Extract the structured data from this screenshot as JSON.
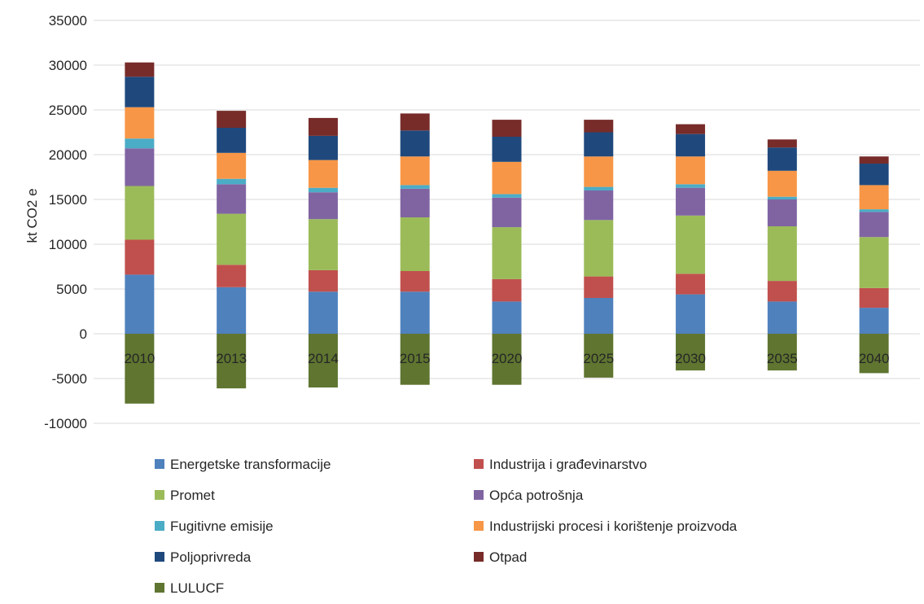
{
  "chart_data": {
    "type": "bar",
    "stacked": true,
    "title": "",
    "xlabel": "",
    "ylabel": "kt CO2 e",
    "ylim": [
      -10000,
      35000
    ],
    "yticks": [
      -10000,
      -5000,
      0,
      5000,
      10000,
      15000,
      20000,
      25000,
      30000,
      35000
    ],
    "grid": true,
    "legend_position": "bottom",
    "categories": [
      "2010",
      "2013",
      "2014",
      "2015",
      "2020",
      "2025",
      "2030",
      "2035",
      "2040"
    ],
    "series": [
      {
        "name": "Energetske transformacije",
        "color": "#4f81bd",
        "values": [
          6600,
          5200,
          4700,
          4700,
          3600,
          4000,
          4400,
          3600,
          2900
        ]
      },
      {
        "name": "Industrija i građevinarstvo",
        "color": "#c0504d",
        "values": [
          3900,
          2500,
          2400,
          2300,
          2500,
          2400,
          2300,
          2300,
          2200
        ]
      },
      {
        "name": "Promet",
        "color": "#9bbb59",
        "values": [
          6000,
          5700,
          5700,
          6000,
          5800,
          6300,
          6500,
          6100,
          5700
        ]
      },
      {
        "name": "Opća potrošnja",
        "color": "#8064a2",
        "values": [
          4200,
          3300,
          3000,
          3200,
          3300,
          3300,
          3100,
          3000,
          2800
        ]
      },
      {
        "name": "Fugitivne emisije",
        "color": "#4bacc6",
        "values": [
          1100,
          600,
          500,
          400,
          400,
          400,
          400,
          300,
          300
        ]
      },
      {
        "name": "Industrijski procesi i korištenje proizvoda",
        "color": "#f79646",
        "values": [
          3500,
          2900,
          3100,
          3200,
          3600,
          3400,
          3100,
          2900,
          2700
        ]
      },
      {
        "name": "Poljoprivreda",
        "color": "#1f497d",
        "values": [
          3400,
          2800,
          2700,
          2900,
          2800,
          2700,
          2500,
          2600,
          2400
        ]
      },
      {
        "name": "Otpad",
        "color": "#772c2a",
        "values": [
          1600,
          1900,
          2000,
          1900,
          1900,
          1400,
          1100,
          900,
          800
        ]
      },
      {
        "name": "LULUCF",
        "color": "#5f7530",
        "values": [
          -7800,
          -6100,
          -6000,
          -5700,
          -5700,
          -4900,
          -4100,
          -4100,
          -4400
        ]
      }
    ]
  }
}
